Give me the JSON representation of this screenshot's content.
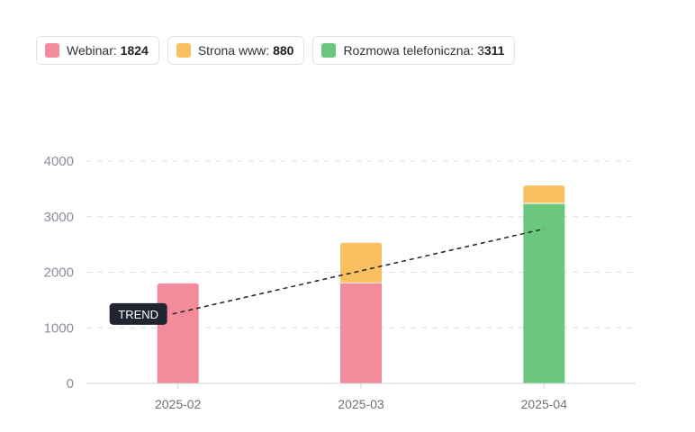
{
  "legend": {
    "items": [
      {
        "label": "Webinar: ",
        "value": "1824",
        "color": "#f48b9b"
      },
      {
        "label": "Strona www: ",
        "value": "880",
        "color": "#f9c062"
      },
      {
        "label": "Rozmowa telefoniczna: 3 ",
        "value": "311",
        "color": "#6bc77d"
      }
    ]
  },
  "trend": {
    "label": "TREND",
    "start": 1250,
    "end": 2780
  },
  "chart_data": {
    "type": "bar",
    "stacked": true,
    "categories": [
      "2025-02",
      "2025-03",
      "2025-04"
    ],
    "series": [
      {
        "name": "Webinar",
        "color": "#f48b9b",
        "values": [
          1800,
          1800,
          0
        ]
      },
      {
        "name": "Rozmowa telefoniczna",
        "color": "#6bc77d",
        "values": [
          0,
          0,
          3230
        ]
      },
      {
        "name": "Strona www",
        "color": "#f9c062",
        "values": [
          0,
          730,
          330
        ]
      }
    ],
    "yticks": [
      0,
      1000,
      2000,
      3000,
      4000
    ],
    "ylim": [
      0,
      4000
    ],
    "grid": true,
    "legend_position": "top-left",
    "title": "",
    "xlabel": "",
    "ylabel": ""
  }
}
